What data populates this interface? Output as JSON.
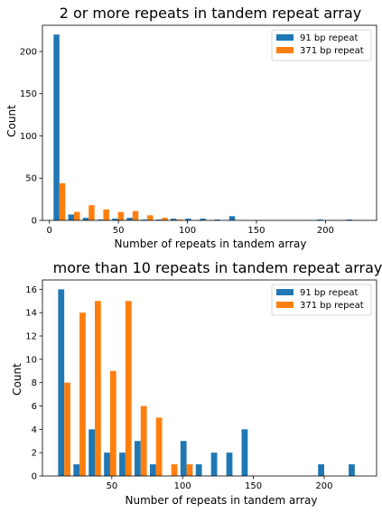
{
  "colors": {
    "series_91": "#1f77b4",
    "series_371": "#ff7f0e"
  },
  "chart_data": [
    {
      "type": "bar",
      "title": "2 or more repeats in tandem repeat array",
      "xlabel": "Number of repeats in tandem array",
      "ylabel": "Count",
      "xlim": [
        -5,
        237
      ],
      "ylim": [
        0,
        231
      ],
      "xticks": [
        0,
        50,
        100,
        150,
        200
      ],
      "yticks": [
        0,
        50,
        100,
        150,
        200
      ],
      "grid": false,
      "legend": "top-right",
      "bin_edges": [
        2,
        12.6,
        23.2,
        33.8,
        44.4,
        55,
        65.6,
        76.2,
        86.8,
        97.4,
        108,
        118.6,
        129.2,
        139.8,
        150.4,
        161,
        171.6,
        182.2,
        192.8,
        203.4,
        214,
        224.6,
        235.2
      ],
      "series": [
        {
          "name": "91 bp repeat",
          "values": [
            220,
            7,
            3,
            1,
            2,
            3,
            1,
            1,
            2,
            2,
            2,
            1,
            5,
            0,
            0,
            0,
            0,
            0,
            1,
            0,
            1,
            0
          ]
        },
        {
          "name": "371 bp repeat",
          "values": [
            44,
            10,
            18,
            13,
            10,
            11,
            6,
            3,
            1,
            0,
            0,
            0,
            0,
            0,
            0,
            0,
            0,
            0,
            0,
            0,
            0,
            0
          ]
        }
      ]
    },
    {
      "type": "bar",
      "title": "more than 10 repeats in tandem repeat array",
      "xlabel": "Number of repeats in tandem array",
      "ylabel": "Count",
      "xlim": [
        1,
        237
      ],
      "ylim": [
        0,
        16.8
      ],
      "xticks": [
        50,
        100,
        150,
        200
      ],
      "yticks": [
        0,
        2,
        4,
        6,
        8,
        10,
        12,
        14,
        16
      ],
      "grid": false,
      "legend": "top-right",
      "bin_edges": [
        11,
        21.8,
        32.6,
        43.4,
        54.2,
        65,
        75.8,
        86.6,
        97.4,
        108.2,
        119,
        129.8,
        140.6,
        151.4,
        162.2,
        173,
        183.8,
        194.6,
        205.4,
        216.2,
        227
      ],
      "series": [
        {
          "name": "91 bp repeat",
          "values": [
            16,
            1,
            4,
            2,
            2,
            3,
            1,
            0,
            3,
            1,
            2,
            2,
            4,
            0,
            0,
            0,
            0,
            1,
            0,
            1
          ]
        },
        {
          "name": "371 bp repeat",
          "values": [
            8,
            14,
            15,
            9,
            15,
            6,
            5,
            1,
            1,
            0,
            0,
            0,
            0,
            0,
            0,
            0,
            0,
            0,
            0,
            0
          ]
        }
      ]
    }
  ]
}
